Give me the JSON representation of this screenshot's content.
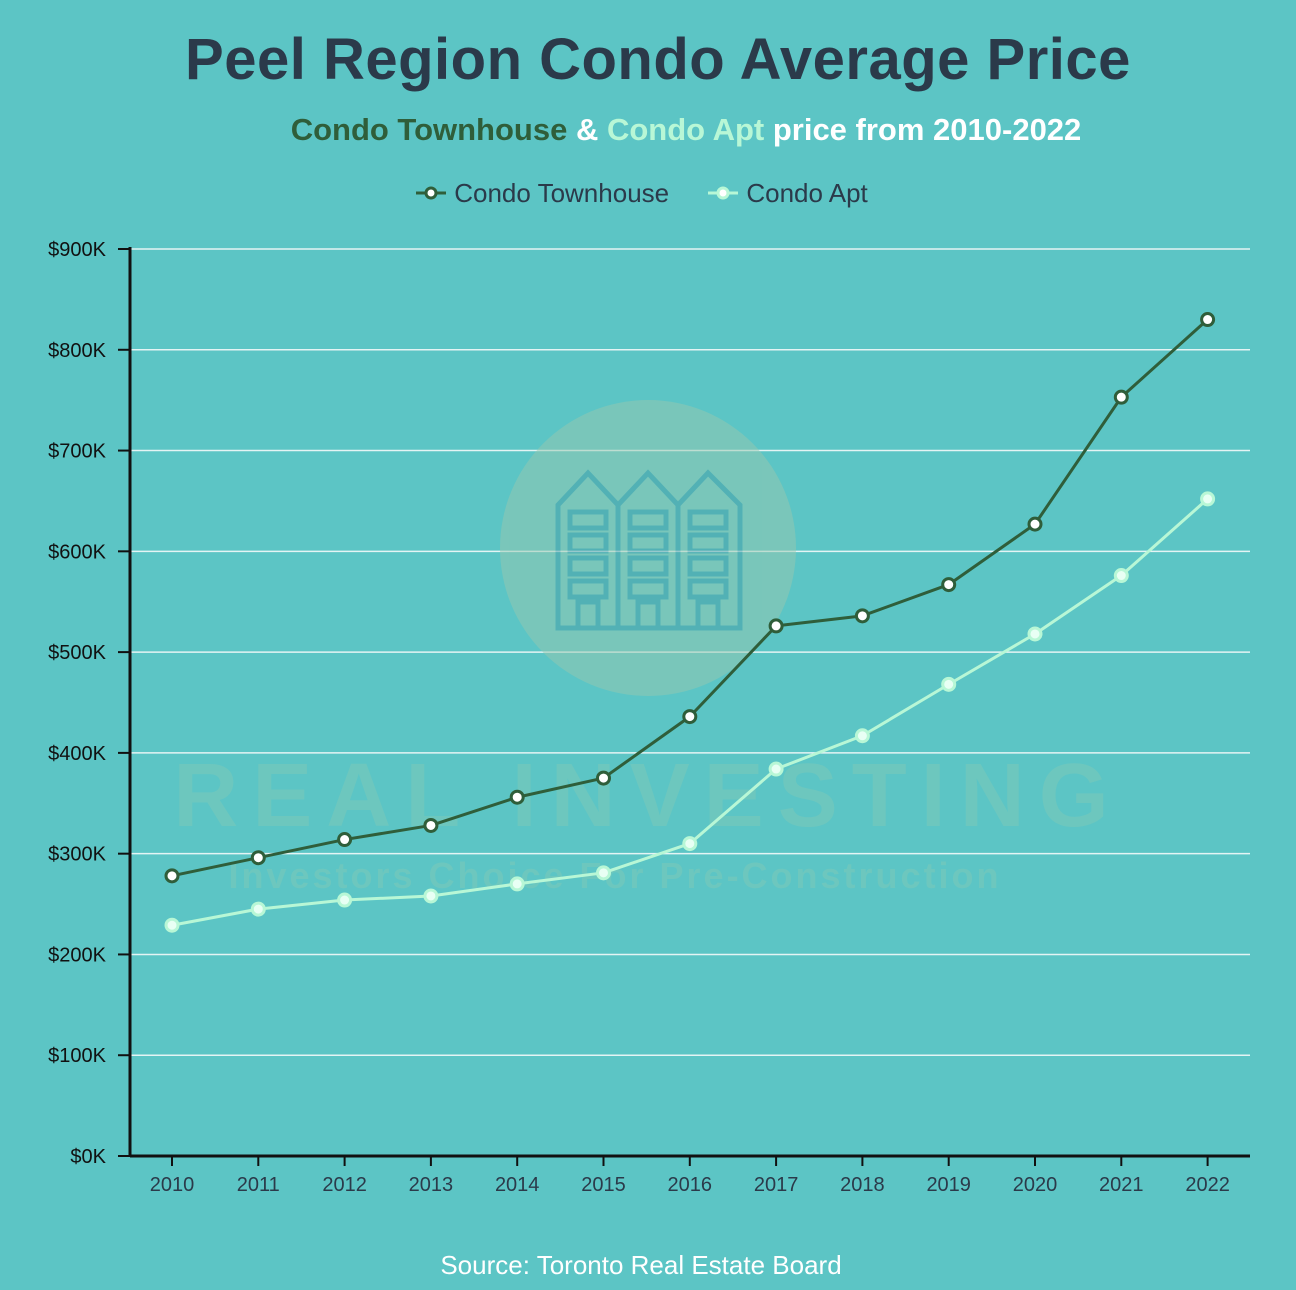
{
  "header": {
    "title": "Peel Region Condo Average Price",
    "subtitle_part1": "Condo Townhouse",
    "subtitle_part2": " & ",
    "subtitle_part3": "Condo Apt",
    "subtitle_part4": " price from 2010-2022"
  },
  "watermark": {
    "brand": "REAL INVESTING",
    "tagline": "Investors Choice For Pre-Construction",
    "icon": "condo-building-icon"
  },
  "footer": {
    "source": "Source: Toronto Real Estate Board"
  },
  "colors": {
    "background": "#5cc5c5",
    "townhouse": "#2f5e3a",
    "apt": "#b8f7d6",
    "title": "#2b3a4a",
    "grid": "#e4f4f4",
    "axis": "#111111"
  },
  "chart_data": {
    "type": "line",
    "title": "Peel Region Condo Average Price",
    "subtitle": "Condo Townhouse & Condo Apt price from 2010-2022",
    "xlabel": "",
    "ylabel": "",
    "x": [
      "2010",
      "2011",
      "2012",
      "2013",
      "2014",
      "2015",
      "2016",
      "2017",
      "2018",
      "2019",
      "2020",
      "2021",
      "2022"
    ],
    "ylim": [
      0,
      900000
    ],
    "yticks": [
      "$0K",
      "$100K",
      "$200K",
      "$300K",
      "$400K",
      "$500K",
      "$600K",
      "$700K",
      "$800K",
      "$900K"
    ],
    "grid": true,
    "legend_position": "top-center",
    "series": [
      {
        "name": "Condo Townhouse",
        "color": "#2f5e3a",
        "values": [
          278000,
          296000,
          314000,
          328000,
          356000,
          375000,
          436000,
          526000,
          536000,
          567000,
          627000,
          753000,
          830000
        ]
      },
      {
        "name": "Condo Apt",
        "color": "#b8f7d6",
        "values": [
          229000,
          245000,
          254000,
          258000,
          270000,
          281000,
          310000,
          384000,
          417000,
          468000,
          518000,
          576000,
          652000
        ]
      }
    ]
  }
}
